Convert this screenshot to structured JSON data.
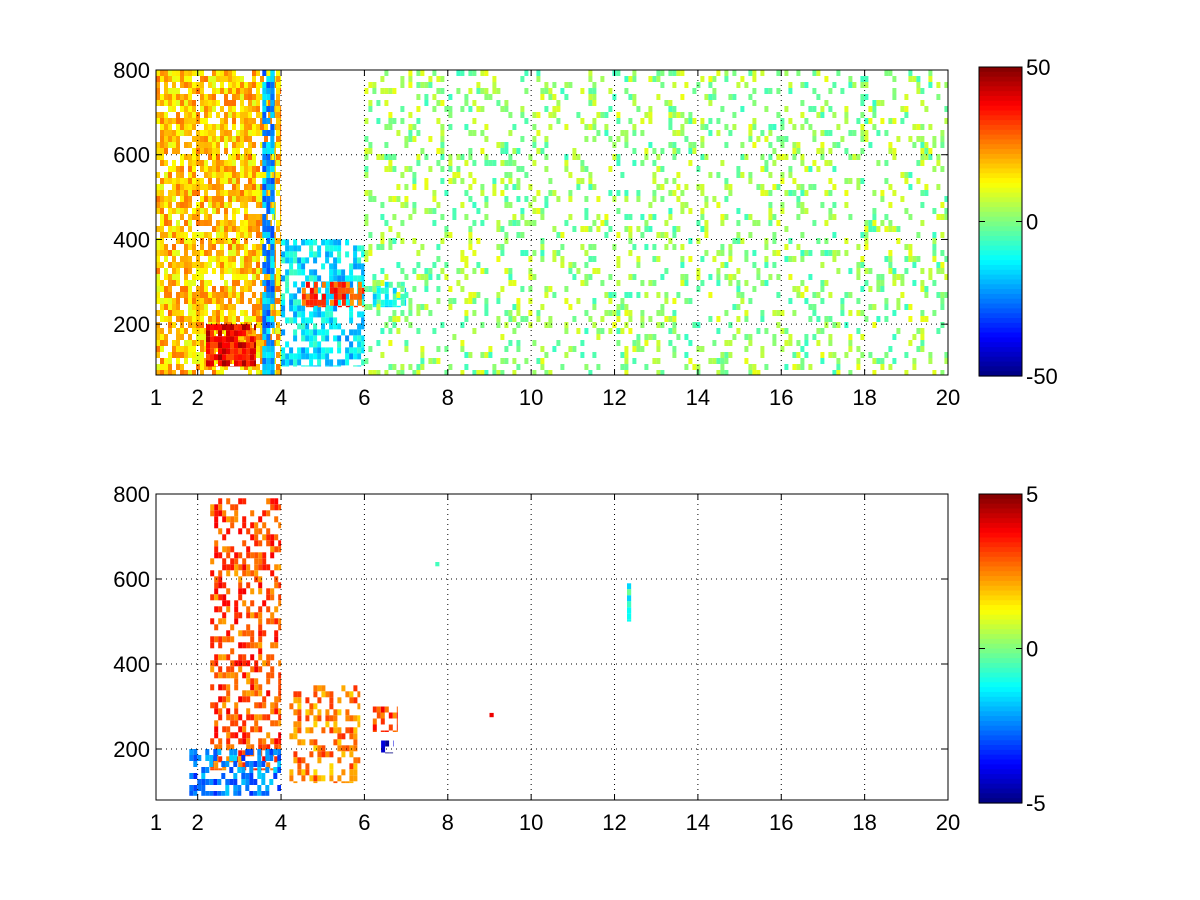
{
  "chart_data": [
    {
      "type": "heatmap",
      "title": "",
      "xlabel": "",
      "ylabel": "",
      "xlim": [
        1,
        20
      ],
      "ylim": [
        80,
        800
      ],
      "xticks": [
        "1",
        "2",
        "4",
        "6",
        "8",
        "10",
        "12",
        "14",
        "16",
        "18",
        "20"
      ],
      "yticks": [
        "200",
        "400",
        "600",
        "800"
      ],
      "grid": true,
      "colormap": "jet",
      "colorbar": {
        "min": -50,
        "max": 50,
        "ticks": [
          "50",
          "0",
          "-50"
        ]
      },
      "features": [
        {
          "x": [
            1.0,
            4.0
          ],
          "y": [
            80,
            800
          ],
          "value": 18,
          "density": 0.75,
          "note": "dense warm band"
        },
        {
          "x": [
            2.2,
            3.4
          ],
          "y": [
            100,
            200
          ],
          "value": 38,
          "density": 0.85
        },
        {
          "x": [
            3.55,
            3.85
          ],
          "y": [
            80,
            800
          ],
          "value": -22,
          "density": 0.8
        },
        {
          "x": [
            4.0,
            6.0
          ],
          "y": [
            100,
            400
          ],
          "value": -15,
          "density": 0.6
        },
        {
          "x": [
            4.5,
            6.0
          ],
          "y": [
            240,
            300
          ],
          "value": 30,
          "density": 0.6
        },
        {
          "x": [
            6.2,
            7.0
          ],
          "y": [
            240,
            300
          ],
          "value": -10,
          "density": 0.7
        },
        {
          "x": [
            6.0,
            20.0
          ],
          "y": [
            80,
            800
          ],
          "value": 2,
          "density": 0.22,
          "note": "sparse green/yellow noise"
        }
      ]
    },
    {
      "type": "heatmap",
      "title": "",
      "xlabel": "",
      "ylabel": "",
      "xlim": [
        1,
        20
      ],
      "ylim": [
        80,
        800
      ],
      "xticks": [
        "1",
        "2",
        "4",
        "6",
        "8",
        "10",
        "12",
        "14",
        "16",
        "18",
        "20"
      ],
      "yticks": [
        "200",
        "400",
        "600",
        "800"
      ],
      "grid": true,
      "colormap": "jet",
      "colorbar": {
        "min": -5,
        "max": 5,
        "ticks": [
          "5",
          "0",
          "-5"
        ]
      },
      "features": [
        {
          "x": [
            2.3,
            4.0
          ],
          "y": [
            150,
            790
          ],
          "value": 3,
          "density": 0.45
        },
        {
          "x": [
            1.8,
            4.0
          ],
          "y": [
            90,
            200
          ],
          "value": -2.5,
          "density": 0.6
        },
        {
          "x": [
            4.2,
            5.9
          ],
          "y": [
            120,
            350
          ],
          "value": 2.5,
          "density": 0.4
        },
        {
          "x": [
            6.2,
            6.8
          ],
          "y": [
            240,
            300
          ],
          "value": 3,
          "density": 0.7
        },
        {
          "x": [
            6.4,
            6.7
          ],
          "y": [
            190,
            220
          ],
          "value": -4.5,
          "density": 0.8
        },
        {
          "x": [
            12.3,
            12.4
          ],
          "y": [
            500,
            590
          ],
          "value": -1,
          "density": 0.9
        },
        {
          "x": [
            9.0,
            9.1
          ],
          "y": [
            275,
            285
          ],
          "value": 4,
          "density": 1
        },
        {
          "x": [
            7.7,
            7.8
          ],
          "y": [
            630,
            640
          ],
          "value": -1,
          "density": 1
        }
      ]
    }
  ]
}
